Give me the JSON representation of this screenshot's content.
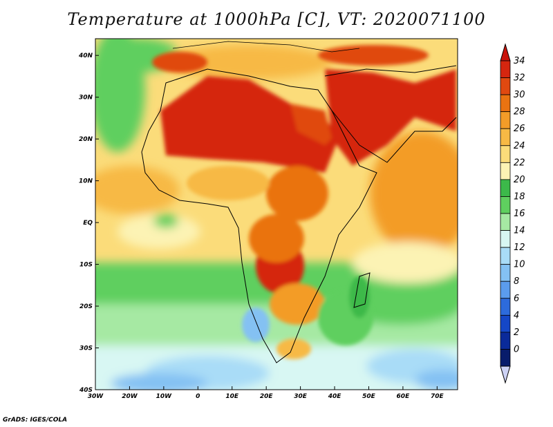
{
  "title": "Temperature at 1000hPa [C], VT: 2020071100",
  "credit": "GrADS: IGES/COLA",
  "map": {
    "lon_range": [
      -30,
      76
    ],
    "lat_range": [
      -40,
      44
    ],
    "lon_ticks": [
      {
        "lon": -30,
        "label": "30W"
      },
      {
        "lon": -20,
        "label": "20W"
      },
      {
        "lon": -10,
        "label": "10W"
      },
      {
        "lon": 0,
        "label": "0"
      },
      {
        "lon": 10,
        "label": "10E"
      },
      {
        "lon": 20,
        "label": "20E"
      },
      {
        "lon": 30,
        "label": "30E"
      },
      {
        "lon": 40,
        "label": "40E"
      },
      {
        "lon": 50,
        "label": "50E"
      },
      {
        "lon": 60,
        "label": "60E"
      },
      {
        "lon": 70,
        "label": "70E"
      }
    ],
    "lat_ticks": [
      {
        "lat": 40,
        "label": "40N"
      },
      {
        "lat": 30,
        "label": "30N"
      },
      {
        "lat": 20,
        "label": "20N"
      },
      {
        "lat": 10,
        "label": "10N"
      },
      {
        "lat": 0,
        "label": "EQ"
      },
      {
        "lat": -10,
        "label": "10S"
      },
      {
        "lat": -20,
        "label": "20S"
      },
      {
        "lat": -30,
        "label": "30S"
      },
      {
        "lat": -40,
        "label": "40S"
      }
    ]
  },
  "colorbar": {
    "levels": [
      "34",
      "32",
      "30",
      "28",
      "26",
      "24",
      "22",
      "20",
      "18",
      "16",
      "14",
      "12",
      "10",
      "8",
      "6",
      "4",
      "2",
      "0"
    ],
    "colors": [
      "#d5260f",
      "#e04910",
      "#ea7311",
      "#f39c28",
      "#f7b945",
      "#fbdc7a",
      "#fcf3b4",
      "#3cb94a",
      "#5fcf5f",
      "#a6e9a3",
      "#d8f7f3",
      "#a9dcf7",
      "#84c1f3",
      "#5b9ced",
      "#2d6bdc",
      "#1547c7",
      "#0a2a9a",
      "#081c6b"
    ],
    "top_color": "#c9130b",
    "bottom_color": "#cdd2f5"
  }
}
